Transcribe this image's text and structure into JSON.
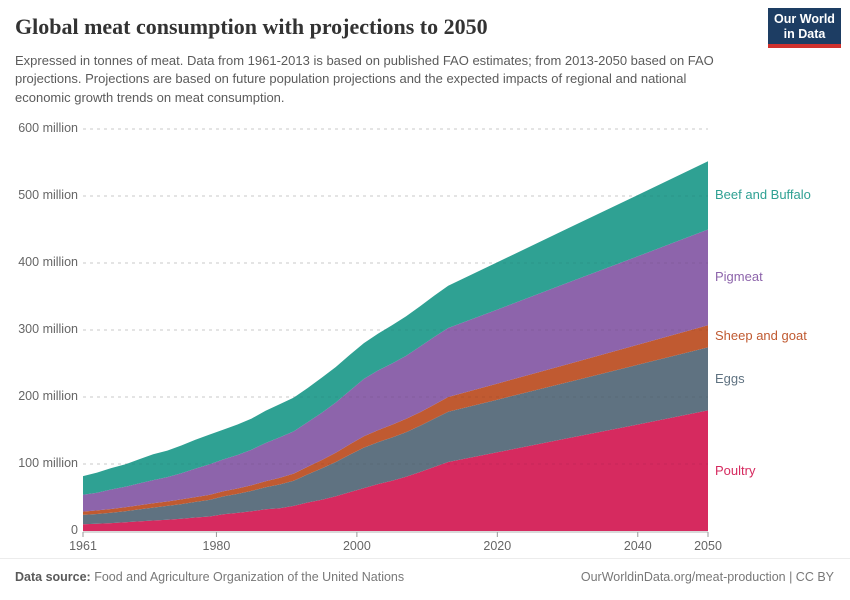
{
  "header": {
    "title": "Global meat consumption with projections to 2050",
    "subtitle": "Expressed in tonnes of meat. Data from 1961-2013 is based on published FAO estimates; from 2013-2050 based on FAO projections. Projections are based on future population projections and the expected impacts of regional and national economic growth trends on meat consumption.",
    "logo": {
      "line1": "Our World",
      "line2": "in Data",
      "bg": "#1d3d63",
      "stripe": "#d0312d"
    }
  },
  "chart_data": {
    "type": "area",
    "stacked": true,
    "title": "Global meat consumption with projections to 2050",
    "unit": "tonnes (millions)",
    "xlim": [
      1961,
      2050
    ],
    "ylim": [
      0,
      600
    ],
    "grid": true,
    "legend_position": "right",
    "x": [
      1961,
      1963,
      1965,
      1967,
      1969,
      1971,
      1973,
      1975,
      1977,
      1979,
      1981,
      1983,
      1985,
      1987,
      1989,
      1991,
      1993,
      1995,
      1997,
      1999,
      2001,
      2003,
      2005,
      2007,
      2009,
      2011,
      2013,
      2020,
      2030,
      2040,
      2050
    ],
    "series": [
      {
        "name": "Poultry",
        "color": "#d62a5f",
        "values_million_tonnes": [
          10,
          10.8,
          11.8,
          13,
          14.4,
          15.6,
          16.8,
          18.4,
          20.2,
          21.6,
          25,
          27,
          29.4,
          32.4,
          34,
          37.5,
          42.5,
          46.5,
          52,
          58,
          64,
          70,
          75,
          81,
          88,
          95.5,
          103,
          117.5,
          138.5,
          159,
          180
        ]
      },
      {
        "name": "Eggs",
        "color": "#5f7281",
        "values_million_tonnes": [
          14,
          14.6,
          15.4,
          16.4,
          17.8,
          19.4,
          20.6,
          21.8,
          23.2,
          24.8,
          26.6,
          28.4,
          30.4,
          33,
          35.4,
          37.6,
          42,
          47,
          51,
          56,
          60.5,
          62.5,
          64.5,
          66.5,
          69,
          72,
          75,
          78.5,
          83.5,
          89,
          94
        ]
      },
      {
        "name": "Sheep and goat",
        "color": "#c05a31",
        "values_million_tonnes": [
          5,
          5.3,
          5.7,
          6,
          6.3,
          6.5,
          6.6,
          6.9,
          7.2,
          7.5,
          7.8,
          8.1,
          8.5,
          9,
          9.8,
          10.5,
          11.5,
          12.5,
          13.8,
          15.5,
          17,
          18,
          19,
          19.8,
          20.3,
          21,
          22,
          24,
          27,
          30,
          33
        ]
      },
      {
        "name": "Pigmeat",
        "color": "#8d64ab",
        "values_million_tonnes": [
          25,
          26.5,
          29,
          30.5,
          32.5,
          34.5,
          36.5,
          39,
          42.5,
          45.5,
          47.5,
          50,
          53,
          57,
          60.5,
          63,
          66.5,
          70.5,
          75,
          80,
          85.5,
          89,
          91.5,
          94,
          98,
          101,
          103,
          110.5,
          121.5,
          132,
          143
        ]
      },
      {
        "name": "Beef and Buffalo",
        "color": "#2fa193",
        "values_million_tonnes": [
          28,
          30,
          32,
          33.5,
          36,
          38.5,
          39.5,
          41.5,
          43,
          44.5,
          44.5,
          45.5,
          46.5,
          48,
          49.5,
          50.5,
          51,
          52.5,
          53,
          53.5,
          53.5,
          55,
          57,
          59,
          60,
          61.5,
          63,
          70.5,
          81,
          91.5,
          102
        ]
      }
    ],
    "projection_start_year": 2013
  },
  "axes": {
    "y_ticks": [
      {
        "value": 0,
        "label": "0"
      },
      {
        "value": 100,
        "label": "100 million"
      },
      {
        "value": 200,
        "label": "200 million"
      },
      {
        "value": 300,
        "label": "300 million"
      },
      {
        "value": 400,
        "label": "400 million"
      },
      {
        "value": 500,
        "label": "500 million"
      },
      {
        "value": 600,
        "label": "600 million"
      }
    ],
    "x_ticks": [
      {
        "value": 1961,
        "label": "1961"
      },
      {
        "value": 1980,
        "label": "1980"
      },
      {
        "value": 2000,
        "label": "2000"
      },
      {
        "value": 2020,
        "label": "2020"
      },
      {
        "value": 2040,
        "label": "2040"
      },
      {
        "value": 2050,
        "label": "2050"
      }
    ]
  },
  "legend": {
    "items": [
      {
        "label": "Beef and Buffalo",
        "color": "#2fa193"
      },
      {
        "label": "Pigmeat",
        "color": "#8d64ab"
      },
      {
        "label": "Sheep and goat",
        "color": "#c05a31"
      },
      {
        "label": "Eggs",
        "color": "#5f7281"
      },
      {
        "label": "Poultry",
        "color": "#d62a5f"
      }
    ]
  },
  "footer": {
    "source_label": "Data source:",
    "source": "Food and Agriculture Organization of the United Nations",
    "citation": "OurWorldinData.org/meat-production | CC BY"
  }
}
